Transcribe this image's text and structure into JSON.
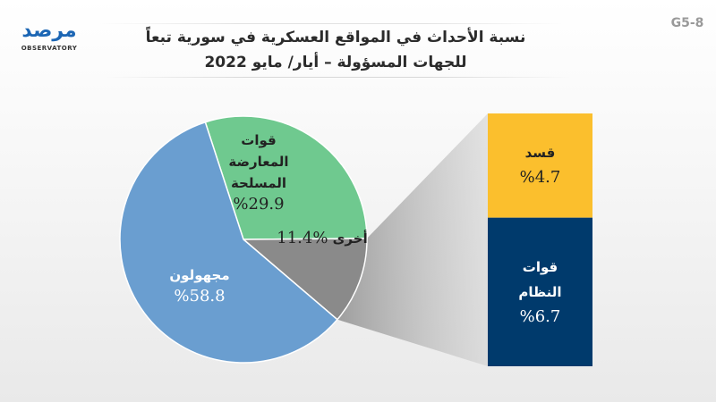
{
  "header": {
    "code": "G5-8",
    "title_line1": "نسبة الأحداث في المواقع العسكرية في سورية تبعاً",
    "title_line2": "للجهات المسؤولة – أيار/ مايو 2022",
    "logo_text": "مرصد",
    "logo_subtext": "OBSERVATORY"
  },
  "colors": {
    "opposition": "#6fc98f",
    "unknown": "#6a9ed0",
    "other": "#8a8a8a",
    "sdf": "#fbbf2d",
    "regime": "#003a6c",
    "connector": "#9a9a9a"
  },
  "chart_data": {
    "type": "pie",
    "title": "نسبة الأحداث في المواقع العسكرية في سورية تبعاً للجهات المسؤولة – أيار/ مايو 2022",
    "slices": [
      {
        "label_lines": [
          "قوات",
          "المعارضة",
          "المسلحة"
        ],
        "value": 29.9,
        "value_label": "%29.9",
        "color": "#6fc98f"
      },
      {
        "label_lines": [
          "أخرى"
        ],
        "value": 11.4,
        "value_label": "%11.4",
        "color": "#8a8a8a"
      },
      {
        "label_lines": [
          "مجهولون"
        ],
        "value": 58.8,
        "value_label": "%58.8",
        "color": "#6a9ed0"
      }
    ],
    "breakdown": {
      "of": "أخرى",
      "type": "stacked-bar",
      "segments": [
        {
          "label_lines": [
            "قسد"
          ],
          "value": 4.7,
          "value_label": "%4.7",
          "color": "#fbbf2d"
        },
        {
          "label_lines": [
            "قوات",
            "النظام"
          ],
          "value": 6.7,
          "value_label": "%6.7",
          "color": "#003a6c"
        }
      ]
    }
  }
}
